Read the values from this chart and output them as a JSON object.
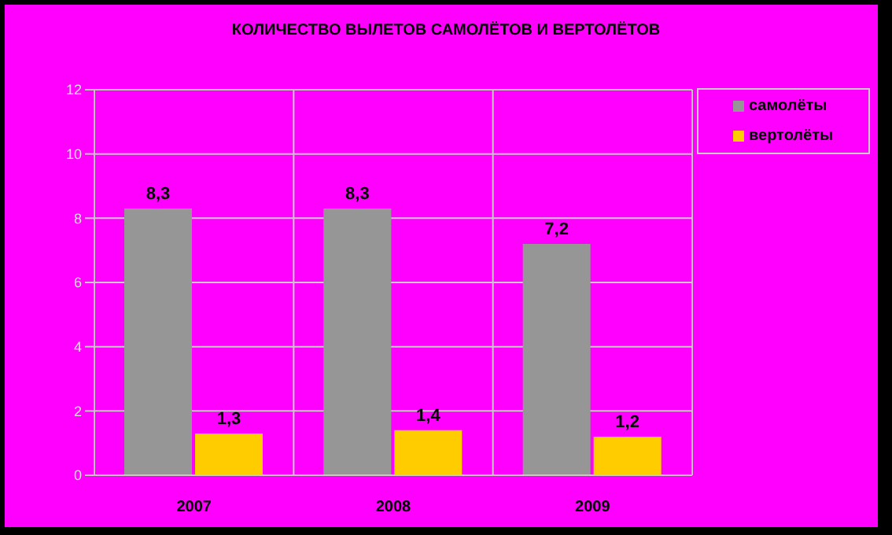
{
  "chart_data": {
    "type": "bar",
    "title": "КОЛИЧЕСТВО ВЫЛЕТОВ САМОЛЁТОВ И ВЕРТОЛЁТОВ",
    "categories": [
      "2007",
      "2008",
      "2009"
    ],
    "series": [
      {
        "name": "самолёты",
        "color": "#969696",
        "values": [
          8.3,
          8.3,
          7.2
        ],
        "value_labels": [
          "8,3",
          "8,3",
          "7,2"
        ]
      },
      {
        "name": "вертолёты",
        "color": "#ffcc00",
        "values": [
          1.3,
          1.4,
          1.2
        ],
        "value_labels": [
          "1,3",
          "1,4",
          "1,2"
        ]
      }
    ],
    "ylim": [
      0,
      12
    ],
    "yticks": [
      0,
      2,
      4,
      6,
      8,
      10,
      12
    ],
    "grid": true,
    "legend": "top right"
  }
}
